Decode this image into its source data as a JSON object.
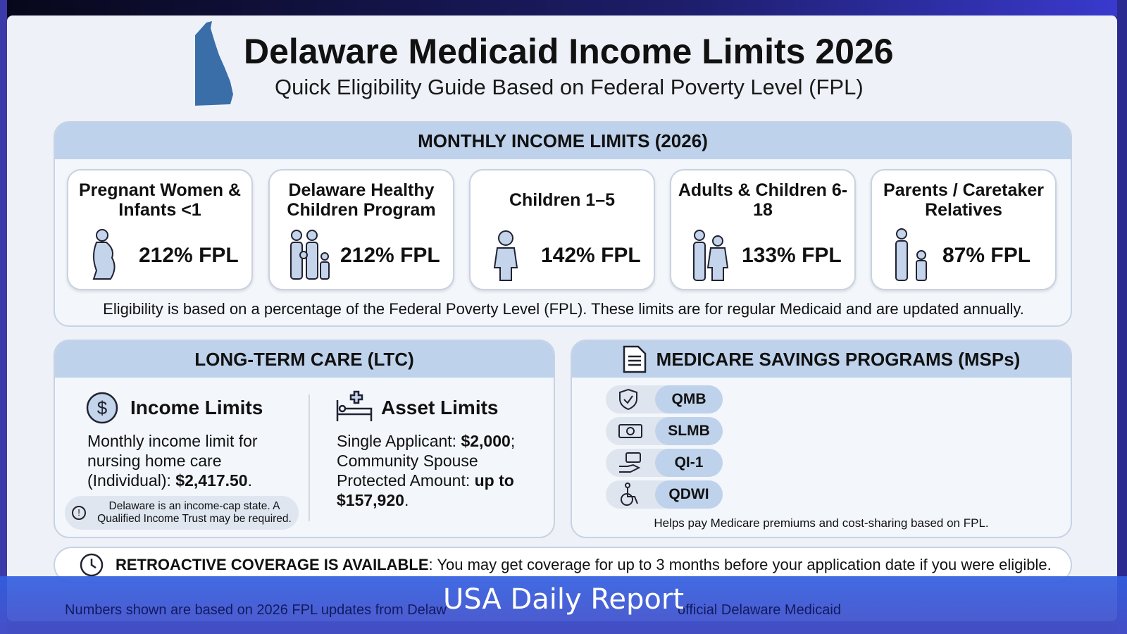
{
  "header": {
    "title": "Delaware Medicaid Income Limits 2026",
    "subtitle": "Quick Eligibility Guide Based on Federal Poverty Level (FPL)"
  },
  "monthly": {
    "heading": "MONTHLY INCOME LIMITS (2026)",
    "cards": [
      {
        "title": "Pregnant Women & Infants <1",
        "value": "212% FPL",
        "icon": "pregnant-woman-icon"
      },
      {
        "title": "Delaware Healthy Children Program",
        "value": "212% FPL",
        "icon": "family-icon"
      },
      {
        "title": "Children 1–5",
        "value": "142% FPL",
        "icon": "child-icon"
      },
      {
        "title": "Adults & Children 6-18",
        "value": "133% FPL",
        "icon": "adult-child-icon"
      },
      {
        "title": "Parents / Caretaker Relatives",
        "value": "87% FPL",
        "icon": "parent-child-icon"
      }
    ],
    "note": "Eligibility is based on a percentage of the Federal Poverty Level (FPL). These limits are for regular Medicaid and are updated annually."
  },
  "ltc": {
    "heading": "LONG-TERM CARE (LTC)",
    "income_title": "Income Limits",
    "income_text": "Monthly income limit for nursing home care (Individual): ",
    "income_value": "$2,417.50",
    "income_note": "Delaware is an income-cap state. A Qualified Income Trust may be required.",
    "asset_title": "Asset Limits",
    "asset_text1": "Single Applicant: ",
    "asset_value1": "$2,000",
    "asset_text2": "; Community Spouse Protected Amount: ",
    "asset_value2": "up to $157,920",
    "end": "."
  },
  "msp": {
    "heading": "MEDICARE SAVINGS PROGRAMS (MSPs)",
    "programs": [
      {
        "label": "QMB",
        "icon": "shield-check-icon"
      },
      {
        "label": "SLMB",
        "icon": "money-icon"
      },
      {
        "label": "QI-1",
        "icon": "hand-card-icon"
      },
      {
        "label": "QDWI",
        "icon": "wheelchair-icon"
      }
    ],
    "note": "Helps pay Medicare premiums and cost-sharing based on FPL."
  },
  "retro": {
    "bold": "RETROACTIVE COVERAGE IS AVAILABLE",
    "text": ": You may get coverage for up to 3 months before your application date if you were eligible."
  },
  "footer": {
    "text1": "Numbers shown are based on 2026 FPL updates from Delaw",
    "text2": "official Delaware Medicaid"
  },
  "banner": {
    "text": "USA Daily Report"
  },
  "colors": {
    "header_band": "#bfd2ec",
    "banner": "#3a5fd8",
    "accent": "#3a6ea8"
  }
}
